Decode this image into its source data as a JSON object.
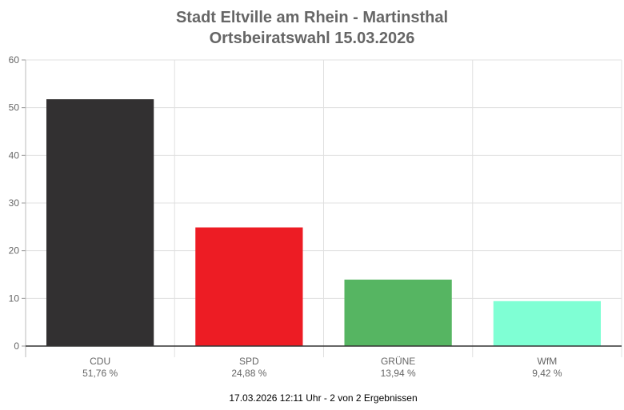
{
  "chart_data": {
    "type": "bar",
    "title": "Stadt Eltville am Rhein - Martinsthal",
    "subtitle": "Ortsbeiratswahl 15.03.2026",
    "categories": [
      "CDU",
      "SPD",
      "GRÜNE",
      "WfM"
    ],
    "value_labels": [
      "51,76 %",
      "24,88 %",
      "13,94 %",
      "9,42 %"
    ],
    "values": [
      51.76,
      24.88,
      13.94,
      9.42
    ],
    "colors": [
      "#323031",
      "#ed1c24",
      "#56b562",
      "#7fffd4"
    ],
    "ylim": [
      0,
      60
    ],
    "yticks": [
      0,
      10,
      20,
      30,
      40,
      50,
      60
    ],
    "grid": true,
    "legend": "none"
  },
  "footer": "17.03.2026 12:11 Uhr - 2 von 2 Ergebnissen"
}
